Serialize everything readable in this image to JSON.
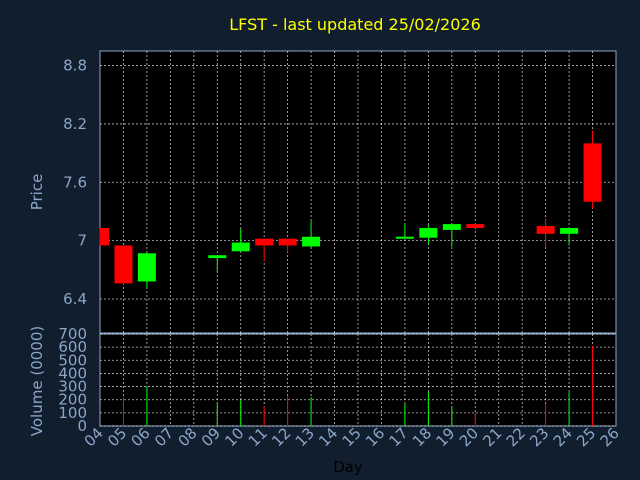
{
  "chart_data": {
    "type": "candlestick",
    "title": "LFST - last updated 25/02/2026",
    "xlabel": "Day",
    "price_ylabel": "Price",
    "volume_ylabel": "Volume (0000)",
    "price_ylim": [
      6.05,
      8.95
    ],
    "price_yticks": [
      "6.4",
      "7",
      "7.6",
      "8.2",
      "8.8"
    ],
    "volume_ylim": [
      0,
      700
    ],
    "volume_yticks": [
      "0",
      "100",
      "200",
      "300",
      "400",
      "500",
      "600",
      "700"
    ],
    "x_ticks": [
      "04",
      "05",
      "06",
      "07",
      "08",
      "09",
      "10",
      "11",
      "12",
      "13",
      "14",
      "15",
      "16",
      "17",
      "18",
      "19",
      "20",
      "21",
      "22",
      "23",
      "24",
      "25",
      "26"
    ],
    "grid": true,
    "colors": {
      "up": "#00ff00",
      "down": "#ff0000",
      "background": "#111e2e",
      "title": "#ffff00",
      "axis_text": "#8ba6c8"
    },
    "candles": [
      {
        "day": "04",
        "open": 7.13,
        "high": 7.13,
        "low": 6.95,
        "close": 6.95
      },
      {
        "day": "05",
        "open": 6.95,
        "high": 6.95,
        "low": 6.55,
        "close": 6.56
      },
      {
        "day": "06",
        "open": 6.58,
        "high": 6.88,
        "low": 6.51,
        "close": 6.87
      },
      {
        "day": "09",
        "open": 6.82,
        "high": 6.85,
        "low": 6.67,
        "close": 6.85
      },
      {
        "day": "10",
        "open": 6.89,
        "high": 7.12,
        "low": 6.89,
        "close": 6.98
      },
      {
        "day": "11",
        "open": 7.02,
        "high": 7.02,
        "low": 6.79,
        "close": 6.95
      },
      {
        "day": "12",
        "open": 7.02,
        "high": 7.02,
        "low": 6.88,
        "close": 6.95
      },
      {
        "day": "13",
        "open": 6.94,
        "high": 7.2,
        "low": 6.92,
        "close": 7.04
      },
      {
        "day": "17",
        "open": 7.03,
        "high": 7.18,
        "low": 7.03,
        "close": 7.04
      },
      {
        "day": "18",
        "open": 7.03,
        "high": 7.16,
        "low": 6.96,
        "close": 7.13
      },
      {
        "day": "19",
        "open": 7.11,
        "high": 7.18,
        "low": 6.94,
        "close": 7.17
      },
      {
        "day": "20",
        "open": 7.17,
        "high": 7.18,
        "low": 7.13,
        "close": 7.13
      },
      {
        "day": "23",
        "open": 7.15,
        "high": 7.22,
        "low": 6.93,
        "close": 7.07
      },
      {
        "day": "24",
        "open": 7.07,
        "high": 7.13,
        "low": 6.95,
        "close": 7.13
      },
      {
        "day": "25",
        "open": 8.0,
        "high": 8.13,
        "low": 7.33,
        "close": 7.4
      }
    ],
    "volume": [
      {
        "day": "05",
        "value": 220,
        "dir": "down"
      },
      {
        "day": "06",
        "value": 300,
        "dir": "up"
      },
      {
        "day": "09",
        "value": 175,
        "dir": "up"
      },
      {
        "day": "10",
        "value": 200,
        "dir": "up"
      },
      {
        "day": "11",
        "value": 150,
        "dir": "down"
      },
      {
        "day": "12",
        "value": 230,
        "dir": "down"
      },
      {
        "day": "13",
        "value": 220,
        "dir": "up"
      },
      {
        "day": "17",
        "value": 170,
        "dir": "up"
      },
      {
        "day": "18",
        "value": 260,
        "dir": "up"
      },
      {
        "day": "19",
        "value": 150,
        "dir": "up"
      },
      {
        "day": "20",
        "value": 100,
        "dir": "down"
      },
      {
        "day": "23",
        "value": 170,
        "dir": "down"
      },
      {
        "day": "24",
        "value": 260,
        "dir": "up"
      },
      {
        "day": "25",
        "value": 610,
        "dir": "down"
      }
    ]
  }
}
